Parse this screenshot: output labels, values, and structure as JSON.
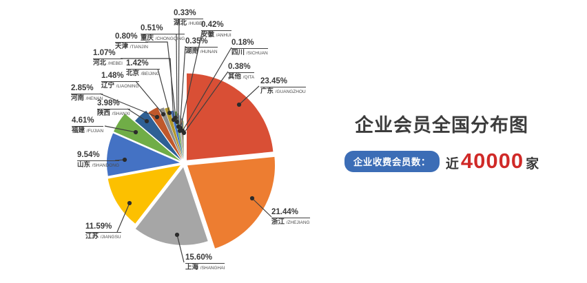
{
  "page": {
    "background": "#ffffff"
  },
  "right_panel": {
    "title": "企业会员全国分布图",
    "badge_label": "企业收费会员数：",
    "stat_prefix": "近",
    "stat_value": "40000",
    "stat_suffix": "家"
  },
  "colors": {
    "badge_bg": "#3c6db6",
    "stat_red": "#d02a28",
    "title_text": "#3c3c3c",
    "leader_line": "#3f3f3f",
    "label_text": "#3a3a3a"
  },
  "chart_data": {
    "type": "pie",
    "title": "企业会员全国分布图",
    "value_unit": "%",
    "order": "clockwise from 12 o'clock, exploded slices, leader-line labels",
    "total": 100.0,
    "series": [
      {
        "name": "广东",
        "pinyin": "GUANGZHOU",
        "value": 23.45,
        "label": "23.45%",
        "color": "#d94f35"
      },
      {
        "name": "浙江",
        "pinyin": "ZHEJIANG",
        "value": 21.44,
        "label": "21.44%",
        "color": "#ed7d31"
      },
      {
        "name": "上海",
        "pinyin": "SHANGHAI",
        "value": 15.6,
        "label": "15.60%",
        "color": "#a6a6a6"
      },
      {
        "name": "江苏",
        "pinyin": "JIANGSU",
        "value": 11.59,
        "label": "11.59%",
        "color": "#fcc000"
      },
      {
        "name": "山东",
        "pinyin": "SHANDONG",
        "value": 9.54,
        "label": "9.54%",
        "color": "#4472c4"
      },
      {
        "name": "福建",
        "pinyin": "FUJIAN",
        "value": 4.61,
        "label": "4.61%",
        "color": "#70ad47"
      },
      {
        "name": "陕西",
        "pinyin": "SHANXI",
        "value": 3.98,
        "label": "3.98%",
        "color": "#2e6095"
      },
      {
        "name": "河南",
        "pinyin": "HENAN",
        "value": 2.85,
        "label": "2.85%",
        "color": "#c0582b"
      },
      {
        "name": "辽宁",
        "pinyin": "LIAONING",
        "value": 1.48,
        "label": "1.48%",
        "color": "#8c8c8c"
      },
      {
        "name": "北京",
        "pinyin": "BEIJING",
        "value": 1.42,
        "label": "1.42%",
        "color": "#b3992f"
      },
      {
        "name": "河北",
        "pinyin": "HEBEI",
        "value": 1.07,
        "label": "1.07%",
        "color": "#4472c4"
      },
      {
        "name": "天津",
        "pinyin": "TIANJIN",
        "value": 0.8,
        "label": "0.80%",
        "color": "#70ad47"
      },
      {
        "name": "重庆",
        "pinyin": "CHONGQING",
        "value": 0.51,
        "label": "0.51%",
        "color": "#9e9e9e"
      },
      {
        "name": "湖北",
        "pinyin": "HUBEI",
        "value": 0.33,
        "label": "0.33%",
        "color": "#9dc3e6"
      },
      {
        "name": "安徽",
        "pinyin": "ANHUI",
        "value": 0.42,
        "label": "0.42%",
        "color": "#f0a868"
      },
      {
        "name": "湖南",
        "pinyin": "HUNAN",
        "value": 0.35,
        "label": "0.35%",
        "color": "#264478"
      },
      {
        "name": "四川",
        "pinyin": "SICHUAN",
        "value": 0.18,
        "label": "0.18%",
        "color": "#538135"
      },
      {
        "name": "其他",
        "pinyin": "QITA",
        "value": 0.38,
        "label": "0.38%",
        "color": "#d6c49a"
      }
    ]
  }
}
